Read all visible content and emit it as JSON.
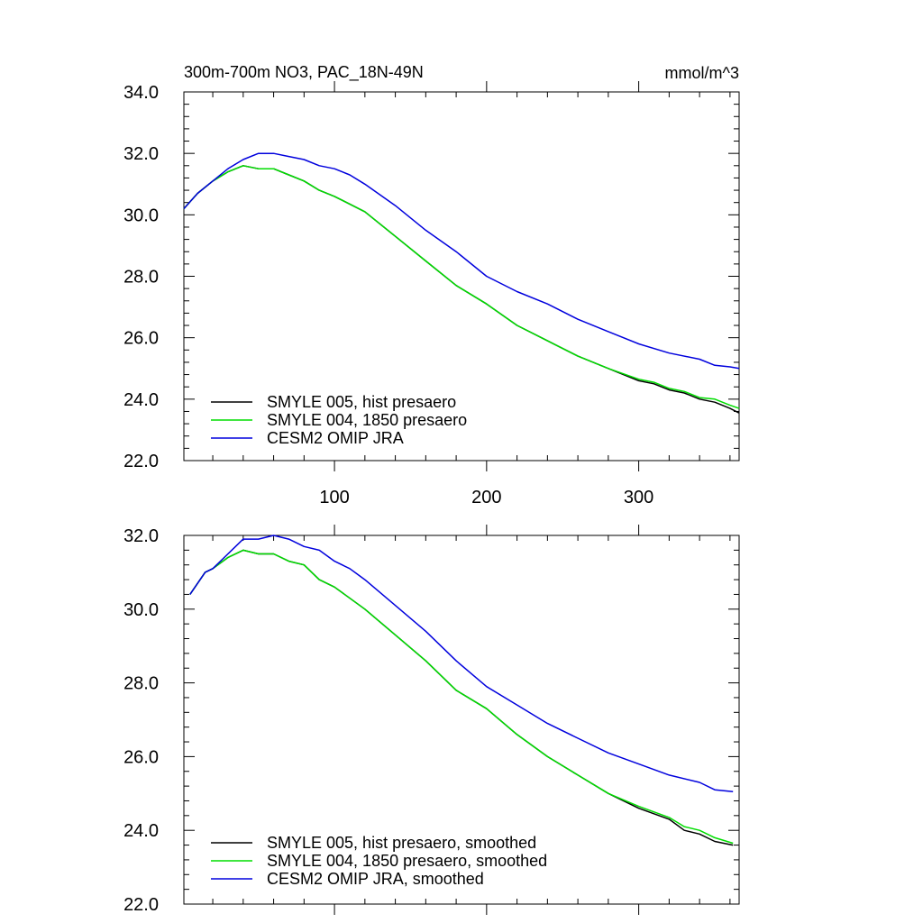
{
  "chart_data": [
    {
      "type": "line",
      "title": "300m-700m NO3, PAC_18N-49N",
      "units": "mmol/m^3",
      "xlim": [
        1,
        366
      ],
      "ylim": [
        22.0,
        34.0
      ],
      "x_ticks": [
        100,
        200,
        300
      ],
      "x_tick_labels": [
        "100",
        "200",
        "300"
      ],
      "y_ticks": [
        22.0,
        24.0,
        26.0,
        28.0,
        30.0,
        32.0,
        34.0
      ],
      "y_tick_labels": [
        "22.0",
        "24.0",
        "26.0",
        "28.0",
        "30.0",
        "32.0",
        "34.0"
      ],
      "legend_position": "bottom-left",
      "series": [
        {
          "name": "SMYLE 005, hist presaero",
          "color": "#000000",
          "x": [
            1,
            10,
            20,
            30,
            40,
            50,
            60,
            70,
            80,
            90,
            100,
            120,
            140,
            160,
            180,
            200,
            220,
            240,
            260,
            280,
            300,
            310,
            320,
            330,
            340,
            350,
            360,
            366
          ],
          "y": [
            30.2,
            30.7,
            31.1,
            31.4,
            31.6,
            31.5,
            31.5,
            31.3,
            31.1,
            30.8,
            30.6,
            30.1,
            29.3,
            28.5,
            27.7,
            27.1,
            26.4,
            25.9,
            25.4,
            25.0,
            24.6,
            24.5,
            24.3,
            24.2,
            24.0,
            23.9,
            23.7,
            23.55
          ]
        },
        {
          "name": "SMYLE 004, 1850 presaero",
          "color": "#00dd00",
          "x": [
            1,
            10,
            20,
            30,
            40,
            50,
            60,
            70,
            80,
            90,
            100,
            120,
            140,
            160,
            180,
            200,
            220,
            240,
            260,
            280,
            300,
            310,
            320,
            330,
            340,
            350,
            360,
            366
          ],
          "y": [
            30.2,
            30.7,
            31.1,
            31.4,
            31.6,
            31.5,
            31.5,
            31.3,
            31.1,
            30.8,
            30.6,
            30.1,
            29.3,
            28.5,
            27.7,
            27.1,
            26.4,
            25.9,
            25.4,
            25.0,
            24.65,
            24.55,
            24.35,
            24.25,
            24.05,
            24.0,
            23.8,
            23.7
          ]
        },
        {
          "name": "CESM2 OMIP JRA",
          "color": "#0000dd",
          "x": [
            1,
            10,
            20,
            30,
            40,
            50,
            60,
            70,
            80,
            90,
            100,
            110,
            120,
            140,
            160,
            180,
            200,
            220,
            240,
            260,
            280,
            300,
            320,
            340,
            350,
            360,
            366
          ],
          "y": [
            30.2,
            30.7,
            31.1,
            31.5,
            31.8,
            32.0,
            32.0,
            31.9,
            31.8,
            31.6,
            31.5,
            31.3,
            31.0,
            30.3,
            29.5,
            28.8,
            28.0,
            27.5,
            27.1,
            26.6,
            26.2,
            25.8,
            25.5,
            25.3,
            25.1,
            25.05,
            25.0
          ]
        }
      ]
    },
    {
      "type": "line",
      "xlim": [
        1,
        366
      ],
      "ylim": [
        22.0,
        32.0
      ],
      "x_ticks": [
        100,
        200,
        300
      ],
      "y_ticks": [
        22.0,
        24.0,
        26.0,
        28.0,
        30.0,
        32.0
      ],
      "y_tick_labels": [
        "22.0",
        "24.0",
        "26.0",
        "28.0",
        "30.0",
        "32.0"
      ],
      "legend_position": "bottom-left",
      "series": [
        {
          "name": "SMYLE 005, hist presaero, smoothed",
          "color": "#000000",
          "x": [
            5,
            10,
            15,
            20,
            30,
            40,
            50,
            60,
            70,
            80,
            90,
            100,
            120,
            140,
            160,
            180,
            200,
            220,
            240,
            260,
            280,
            300,
            320,
            330,
            340,
            350,
            362
          ],
          "y": [
            30.4,
            30.7,
            31.0,
            31.1,
            31.4,
            31.6,
            31.5,
            31.5,
            31.3,
            31.2,
            30.8,
            30.6,
            30.0,
            29.3,
            28.6,
            27.8,
            27.3,
            26.6,
            26.0,
            25.5,
            25.0,
            24.6,
            24.3,
            24.0,
            23.9,
            23.7,
            23.6
          ]
        },
        {
          "name": "SMYLE 004, 1850 presaero, smoothed",
          "color": "#00dd00",
          "x": [
            5,
            10,
            15,
            20,
            30,
            40,
            50,
            60,
            70,
            80,
            90,
            100,
            120,
            140,
            160,
            180,
            200,
            220,
            240,
            260,
            280,
            300,
            320,
            330,
            340,
            350,
            362
          ],
          "y": [
            30.4,
            30.7,
            31.0,
            31.1,
            31.4,
            31.6,
            31.5,
            31.5,
            31.3,
            31.2,
            30.8,
            30.6,
            30.0,
            29.3,
            28.6,
            27.8,
            27.3,
            26.6,
            26.0,
            25.5,
            25.0,
            24.65,
            24.35,
            24.1,
            24.0,
            23.8,
            23.65
          ]
        },
        {
          "name": "CESM2 OMIP JRA, smoothed",
          "color": "#0000dd",
          "x": [
            5,
            10,
            15,
            20,
            30,
            40,
            50,
            60,
            70,
            80,
            90,
            100,
            110,
            120,
            140,
            160,
            180,
            200,
            220,
            240,
            260,
            280,
            300,
            320,
            340,
            350,
            362
          ],
          "y": [
            30.4,
            30.7,
            31.0,
            31.1,
            31.5,
            31.9,
            31.9,
            32.0,
            31.9,
            31.7,
            31.6,
            31.3,
            31.1,
            30.8,
            30.1,
            29.4,
            28.6,
            27.9,
            27.4,
            26.9,
            26.5,
            26.1,
            25.8,
            25.5,
            25.3,
            25.1,
            25.05
          ]
        }
      ]
    }
  ]
}
